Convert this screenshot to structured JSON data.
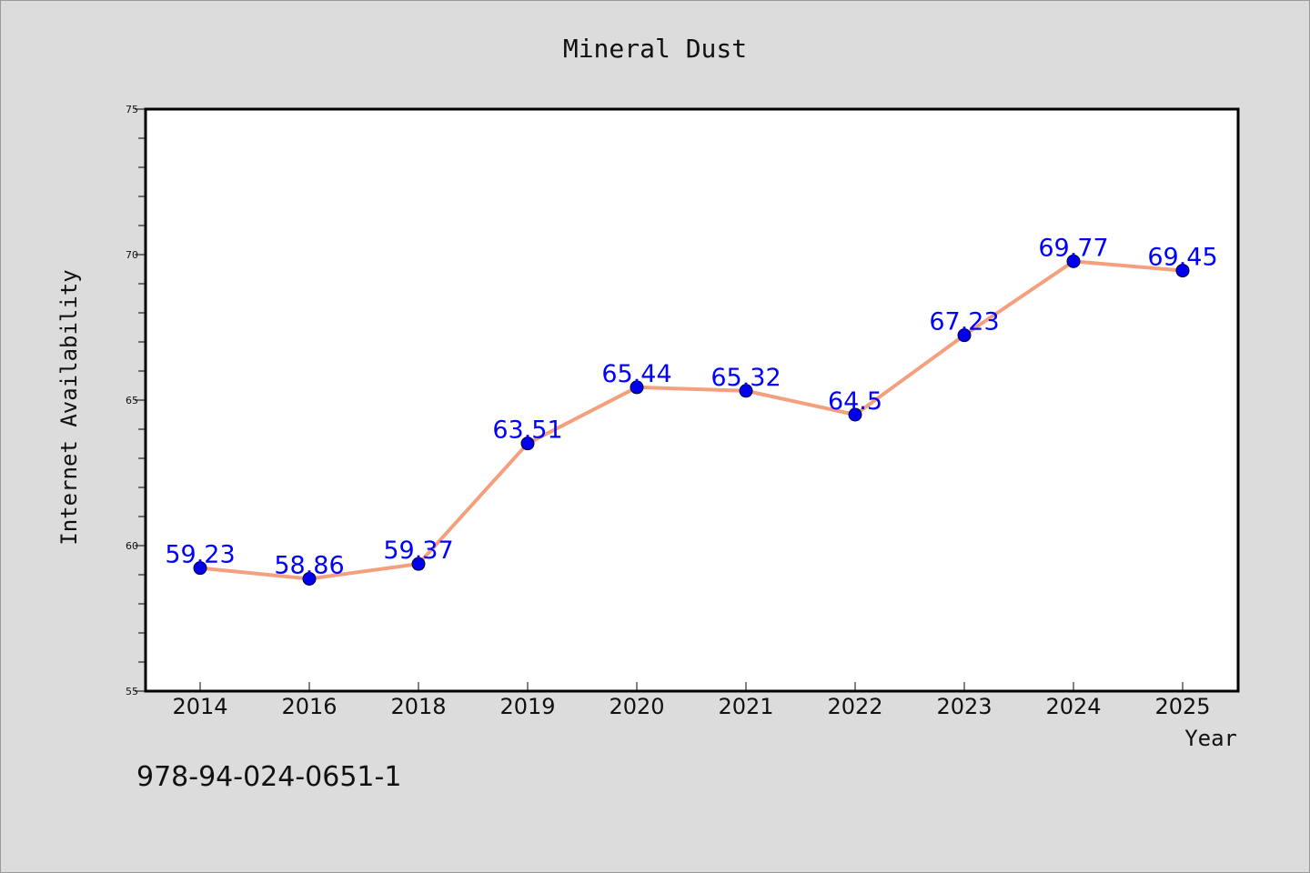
{
  "chart_data": {
    "type": "line",
    "title": "Mineral Dust",
    "xlabel": "Year",
    "ylabel": "Internet Availability",
    "categories": [
      "2014",
      "2016",
      "2018",
      "2019",
      "2020",
      "2021",
      "2022",
      "2023",
      "2024",
      "2025"
    ],
    "series": [
      {
        "values": [
          59.23,
          58.86,
          59.37,
          63.51,
          65.44,
          65.32,
          64.5,
          67.23,
          69.77,
          69.45
        ],
        "labels": [
          "59.23",
          "58.86",
          "59.37",
          "63.51",
          "65.44",
          "65.32",
          "64.5",
          "67.23",
          "69.77",
          "69.45"
        ]
      }
    ],
    "ylim": [
      55,
      75
    ],
    "yticks": [
      "55",
      "60",
      "65",
      "70",
      "75"
    ],
    "grid": false,
    "colors": {
      "line": "#f4a07e",
      "marker": "#0000ee",
      "label": "#0000ff",
      "background": "#dcdcdc",
      "plot_background": "#ffffff"
    }
  },
  "footer_code": "978-94-024-0651-1"
}
